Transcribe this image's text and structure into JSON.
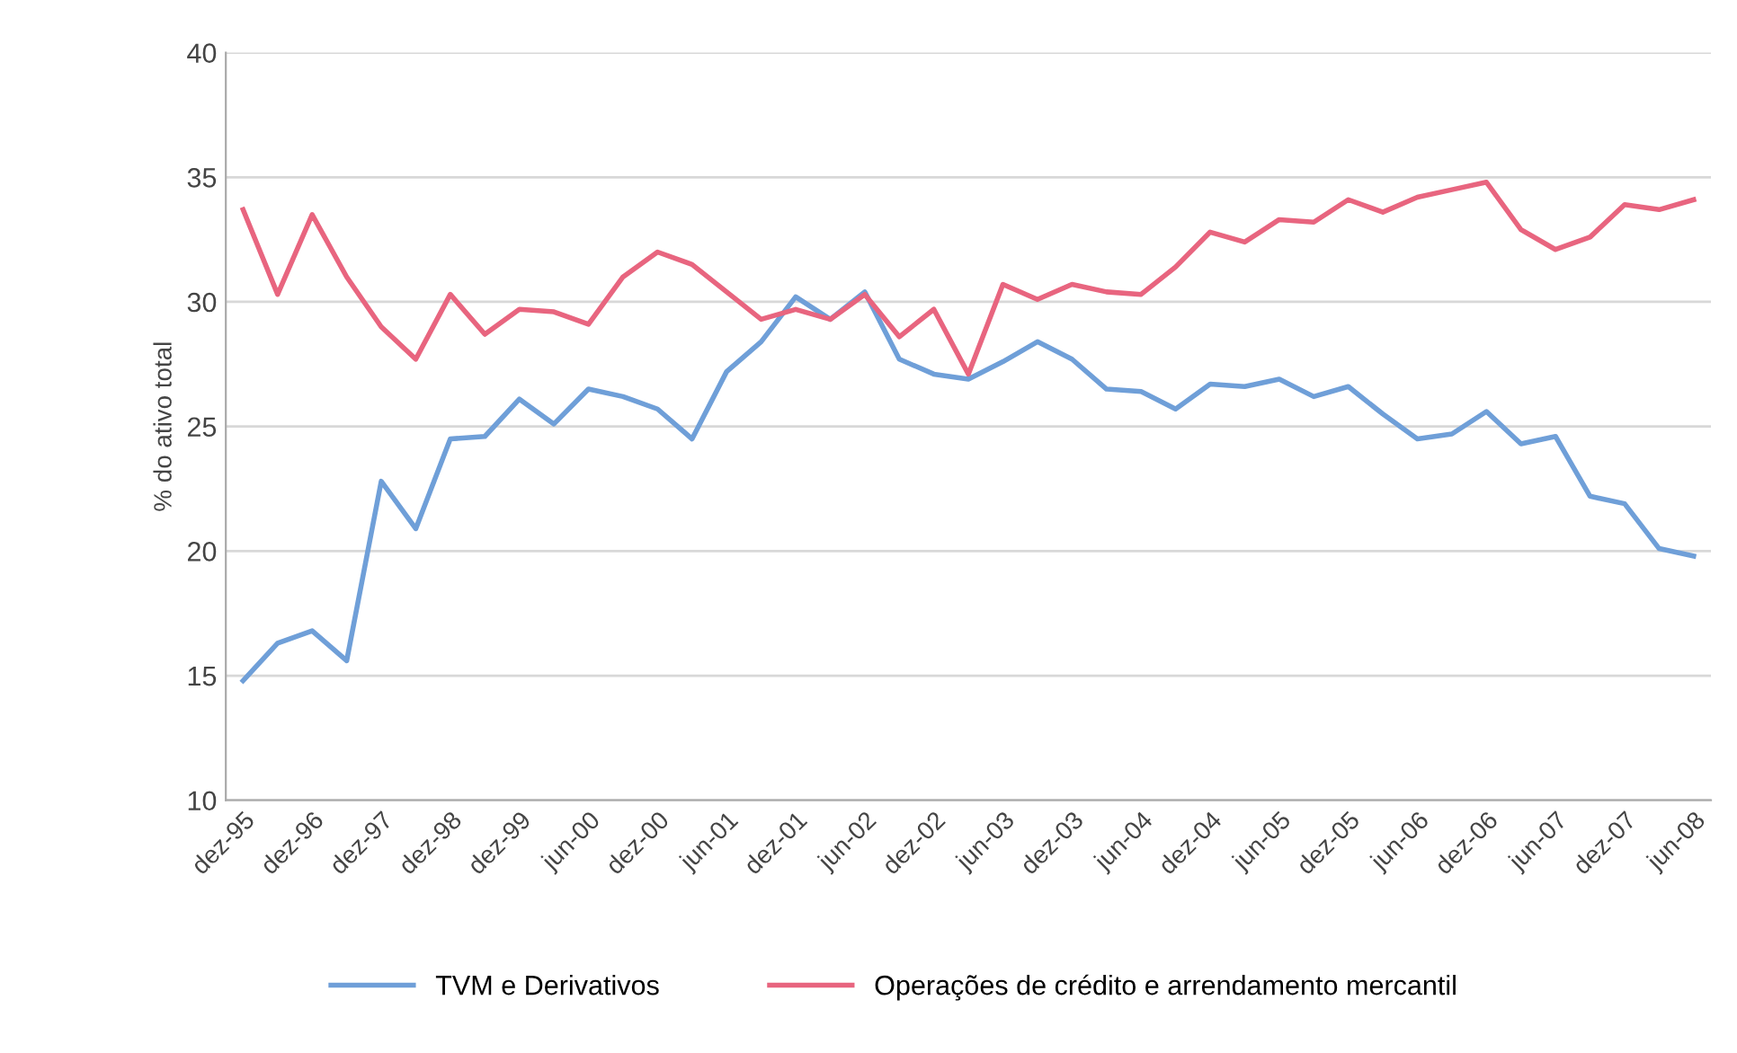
{
  "chart_data": {
    "type": "line",
    "ylabel": "% do ativo total",
    "categories": [
      "dez-95",
      null,
      "dez-96",
      null,
      "dez-97",
      null,
      "dez-98",
      null,
      "dez-99",
      null,
      "jun-00",
      null,
      "dez-00",
      null,
      "jun-01",
      null,
      "dez-01",
      null,
      "jun-02",
      null,
      "dez-02",
      null,
      "jun-03",
      null,
      "dez-03",
      null,
      "jun-04",
      null,
      "dez-04",
      null,
      "jun-05",
      null,
      "dez-05",
      null,
      "jun-06",
      null,
      "dez-06",
      null,
      "jun-07",
      null,
      "dez-07",
      null,
      "jun-08"
    ],
    "series": [
      {
        "name": "TVM e Derivativos",
        "color": "#6f9fd8",
        "values": [
          14.8,
          16.3,
          16.8,
          15.6,
          22.8,
          20.9,
          24.5,
          24.6,
          26.1,
          25.1,
          26.5,
          26.2,
          25.7,
          24.5,
          27.2,
          28.4,
          30.2,
          29.3,
          30.4,
          27.7,
          27.1,
          26.9,
          27.6,
          28.4,
          27.7,
          26.5,
          26.4,
          25.7,
          26.7,
          26.6,
          26.9,
          26.2,
          26.6,
          25.5,
          24.5,
          24.7,
          25.6,
          24.3,
          24.6,
          22.2,
          21.9,
          20.1,
          19.8
        ]
      },
      {
        "name": "Operações de crédito e arrendamento mercantil",
        "color": "#e8657f",
        "values": [
          33.7,
          30.3,
          33.5,
          31.0,
          29.0,
          27.7,
          30.3,
          28.7,
          29.7,
          29.6,
          29.1,
          31.0,
          32.0,
          31.5,
          30.4,
          29.3,
          29.7,
          29.3,
          30.3,
          28.6,
          29.7,
          27.1,
          30.7,
          30.1,
          30.7,
          30.4,
          30.3,
          31.4,
          32.8,
          32.4,
          33.3,
          33.2,
          34.1,
          33.6,
          34.2,
          34.5,
          34.8,
          32.9,
          32.1,
          32.6,
          33.9,
          33.7,
          34.1
        ]
      }
    ],
    "ylim": [
      10,
      40
    ],
    "yticks": [
      10,
      15,
      20,
      25,
      30,
      35,
      40
    ],
    "grid": "y",
    "legend": "bottom",
    "marker": "none",
    "line_style": "solid"
  }
}
